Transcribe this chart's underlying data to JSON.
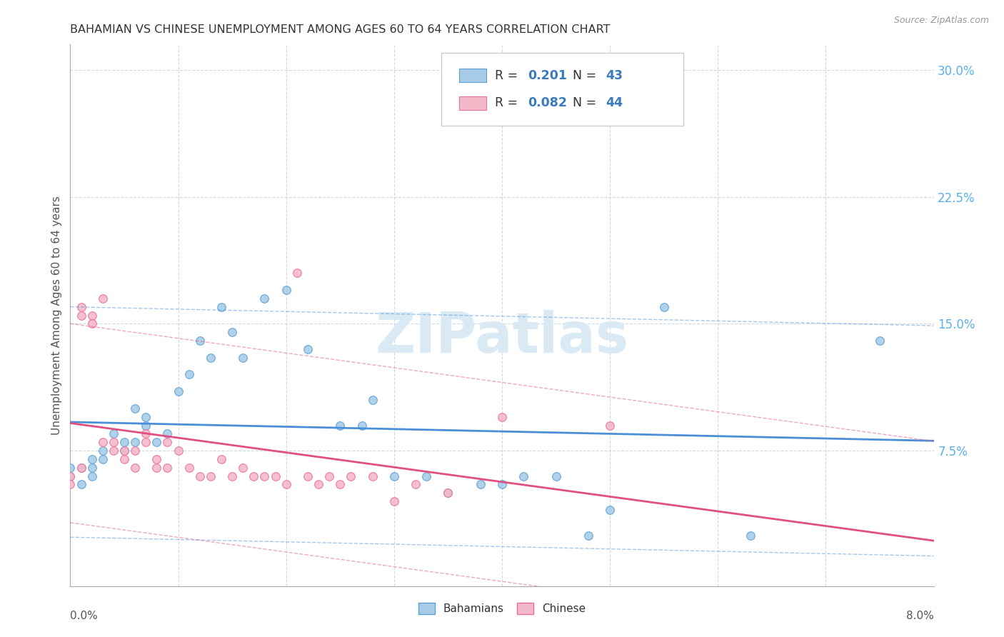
{
  "title": "BAHAMIAN VS CHINESE UNEMPLOYMENT AMONG AGES 60 TO 64 YEARS CORRELATION CHART",
  "source": "Source: ZipAtlas.com",
  "ylabel": "Unemployment Among Ages 60 to 64 years",
  "x_min": 0.0,
  "x_max": 0.08,
  "y_min": -0.005,
  "y_max": 0.315,
  "y_ticks": [
    0.075,
    0.15,
    0.225,
    0.3
  ],
  "y_tick_labels": [
    "7.5%",
    "15.0%",
    "22.5%",
    "30.0%"
  ],
  "bahamian_R": 0.201,
  "bahamian_N": 43,
  "chinese_R": 0.082,
  "chinese_N": 44,
  "blue_fill": "#a8cce8",
  "pink_fill": "#f4b8c8",
  "blue_edge": "#5a9fd4",
  "pink_edge": "#e8709a",
  "blue_line": "#4a90d9",
  "pink_line": "#e05080",
  "axis_tick_color": "#5ab0e8",
  "grid_color": "#d0d8e8",
  "watermark_color": "#daeaf5",
  "legend_text_black": "#333333",
  "legend_val_color": "#3a7abf",
  "bah_x": [
    0.0,
    0.0,
    0.001,
    0.001,
    0.002,
    0.002,
    0.002,
    0.003,
    0.003,
    0.004,
    0.005,
    0.005,
    0.006,
    0.006,
    0.007,
    0.007,
    0.008,
    0.009,
    0.01,
    0.011,
    0.012,
    0.013,
    0.014,
    0.015,
    0.016,
    0.018,
    0.02,
    0.022,
    0.025,
    0.027,
    0.028,
    0.03,
    0.033,
    0.035,
    0.038,
    0.04,
    0.042,
    0.045,
    0.048,
    0.05,
    0.055,
    0.063,
    0.075
  ],
  "bah_y": [
    0.065,
    0.06,
    0.065,
    0.055,
    0.06,
    0.07,
    0.065,
    0.075,
    0.07,
    0.085,
    0.075,
    0.08,
    0.1,
    0.08,
    0.095,
    0.09,
    0.08,
    0.085,
    0.11,
    0.12,
    0.14,
    0.13,
    0.16,
    0.145,
    0.13,
    0.165,
    0.17,
    0.135,
    0.09,
    0.09,
    0.105,
    0.06,
    0.06,
    0.05,
    0.055,
    0.055,
    0.06,
    0.06,
    0.025,
    0.04,
    0.16,
    0.025,
    0.14
  ],
  "chi_x": [
    0.0,
    0.0,
    0.001,
    0.001,
    0.001,
    0.002,
    0.002,
    0.003,
    0.003,
    0.004,
    0.004,
    0.005,
    0.005,
    0.006,
    0.006,
    0.007,
    0.007,
    0.008,
    0.008,
    0.009,
    0.009,
    0.01,
    0.011,
    0.012,
    0.013,
    0.014,
    0.015,
    0.016,
    0.017,
    0.018,
    0.019,
    0.02,
    0.021,
    0.022,
    0.023,
    0.024,
    0.025,
    0.026,
    0.028,
    0.03,
    0.032,
    0.035,
    0.04,
    0.05
  ],
  "chi_y": [
    0.06,
    0.055,
    0.155,
    0.16,
    0.065,
    0.155,
    0.15,
    0.165,
    0.08,
    0.08,
    0.075,
    0.075,
    0.07,
    0.075,
    0.065,
    0.085,
    0.08,
    0.07,
    0.065,
    0.08,
    0.065,
    0.075,
    0.065,
    0.06,
    0.06,
    0.07,
    0.06,
    0.065,
    0.06,
    0.06,
    0.06,
    0.055,
    0.18,
    0.06,
    0.055,
    0.06,
    0.055,
    0.06,
    0.06,
    0.045,
    0.055,
    0.05,
    0.095,
    0.09
  ]
}
